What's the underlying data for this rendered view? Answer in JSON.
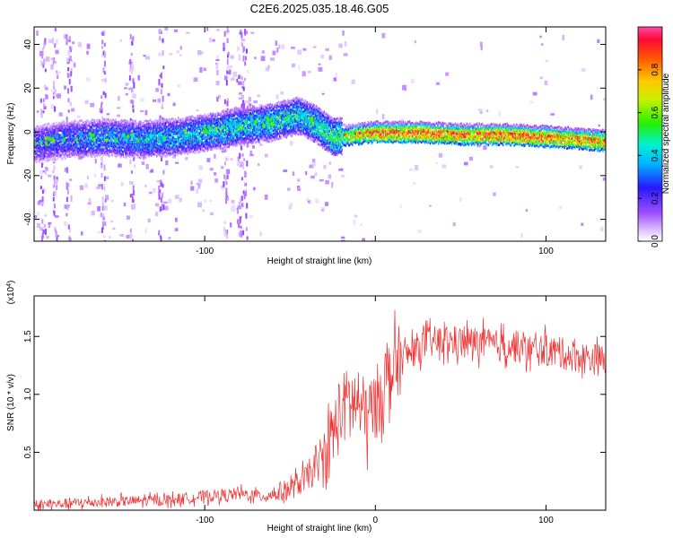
{
  "title": "C2E6.2025.035.18.46.G05",
  "colors": {
    "snr_line": "#ee3333",
    "axis": "#000000"
  },
  "chart_data": [
    {
      "type": "heatmap",
      "xlabel": "Height of straight line (km)",
      "ylabel": "Frequency (Hz)",
      "xlim": [
        -200,
        135
      ],
      "ylim": [
        -50,
        48
      ],
      "x_ticks": [
        -100,
        0,
        100
      ],
      "x_tick_labels": [
        "-100",
        "",
        "100"
      ],
      "y_ticks": [
        -40,
        -20,
        0,
        20,
        40
      ],
      "y_tick_labels": [
        "-40",
        "-20",
        "0",
        "20",
        "40"
      ],
      "colorbar": {
        "label": "Normalized spectral amplitude",
        "range": [
          0,
          1
        ],
        "ticks": [
          0.0,
          0.2,
          0.4,
          0.6,
          0.8
        ],
        "tick_labels": [
          "0.0",
          "0.2",
          "0.4",
          "0.6",
          "0.8"
        ]
      },
      "ridge": [
        {
          "x": -200,
          "freq": -5,
          "amp": 0.3
        },
        {
          "x": -180,
          "freq": -3,
          "amp": 0.35
        },
        {
          "x": -160,
          "freq": -2,
          "amp": 0.4
        },
        {
          "x": -140,
          "freq": -3,
          "amp": 0.4
        },
        {
          "x": -120,
          "freq": -2,
          "amp": 0.45
        },
        {
          "x": -100,
          "freq": 0,
          "amp": 0.45
        },
        {
          "x": -80,
          "freq": 3,
          "amp": 0.5
        },
        {
          "x": -60,
          "freq": 5,
          "amp": 0.5
        },
        {
          "x": -45,
          "freq": 8,
          "amp": 0.5
        },
        {
          "x": -35,
          "freq": 4,
          "amp": 0.55
        },
        {
          "x": -25,
          "freq": -2,
          "amp": 0.6
        },
        {
          "x": 0,
          "freq": 0,
          "amp": 0.9
        },
        {
          "x": 25,
          "freq": 0,
          "amp": 0.9
        },
        {
          "x": 50,
          "freq": -1,
          "amp": 0.9
        },
        {
          "x": 75,
          "freq": -1,
          "amp": 0.9
        },
        {
          "x": 100,
          "freq": -2,
          "amp": 0.9
        },
        {
          "x": 120,
          "freq": -3,
          "amp": 0.85
        },
        {
          "x": 135,
          "freq": -4,
          "amp": 0.85
        }
      ]
    },
    {
      "type": "line",
      "xlabel": "Height of straight line (km)",
      "ylabel": "SNR (10 * v/v)",
      "y_multiplier": "(x10",
      "y_multiplier_exp": "4",
      "y_multiplier_close": ")",
      "xlim": [
        -200,
        135
      ],
      "ylim": [
        0,
        1.85
      ],
      "x_ticks": [
        -100,
        0,
        100
      ],
      "x_tick_labels": [
        "-100",
        "0",
        "100"
      ],
      "y_ticks": [
        0.5,
        1.0,
        1.5
      ],
      "y_tick_labels": [
        "0.5",
        "1.0",
        "1.5"
      ],
      "series": [
        {
          "x": [
            -200,
            -180,
            -160,
            -140,
            -120,
            -100,
            -80,
            -65,
            -50,
            -40,
            -30,
            -25,
            -20,
            -15,
            -10,
            -5,
            0,
            5,
            10,
            15,
            20,
            25,
            30,
            40,
            50,
            60,
            70,
            80,
            90,
            100,
            110,
            120,
            130,
            135
          ],
          "y": [
            0.04,
            0.06,
            0.07,
            0.08,
            0.09,
            0.12,
            0.14,
            0.12,
            0.18,
            0.28,
            0.45,
            0.65,
            0.85,
            0.95,
            0.9,
            0.8,
            0.9,
            1.1,
            1.2,
            1.3,
            1.35,
            1.4,
            1.45,
            1.45,
            1.45,
            1.45,
            1.42,
            1.42,
            1.38,
            1.38,
            1.35,
            1.32,
            1.3,
            1.28
          ]
        }
      ]
    }
  ]
}
